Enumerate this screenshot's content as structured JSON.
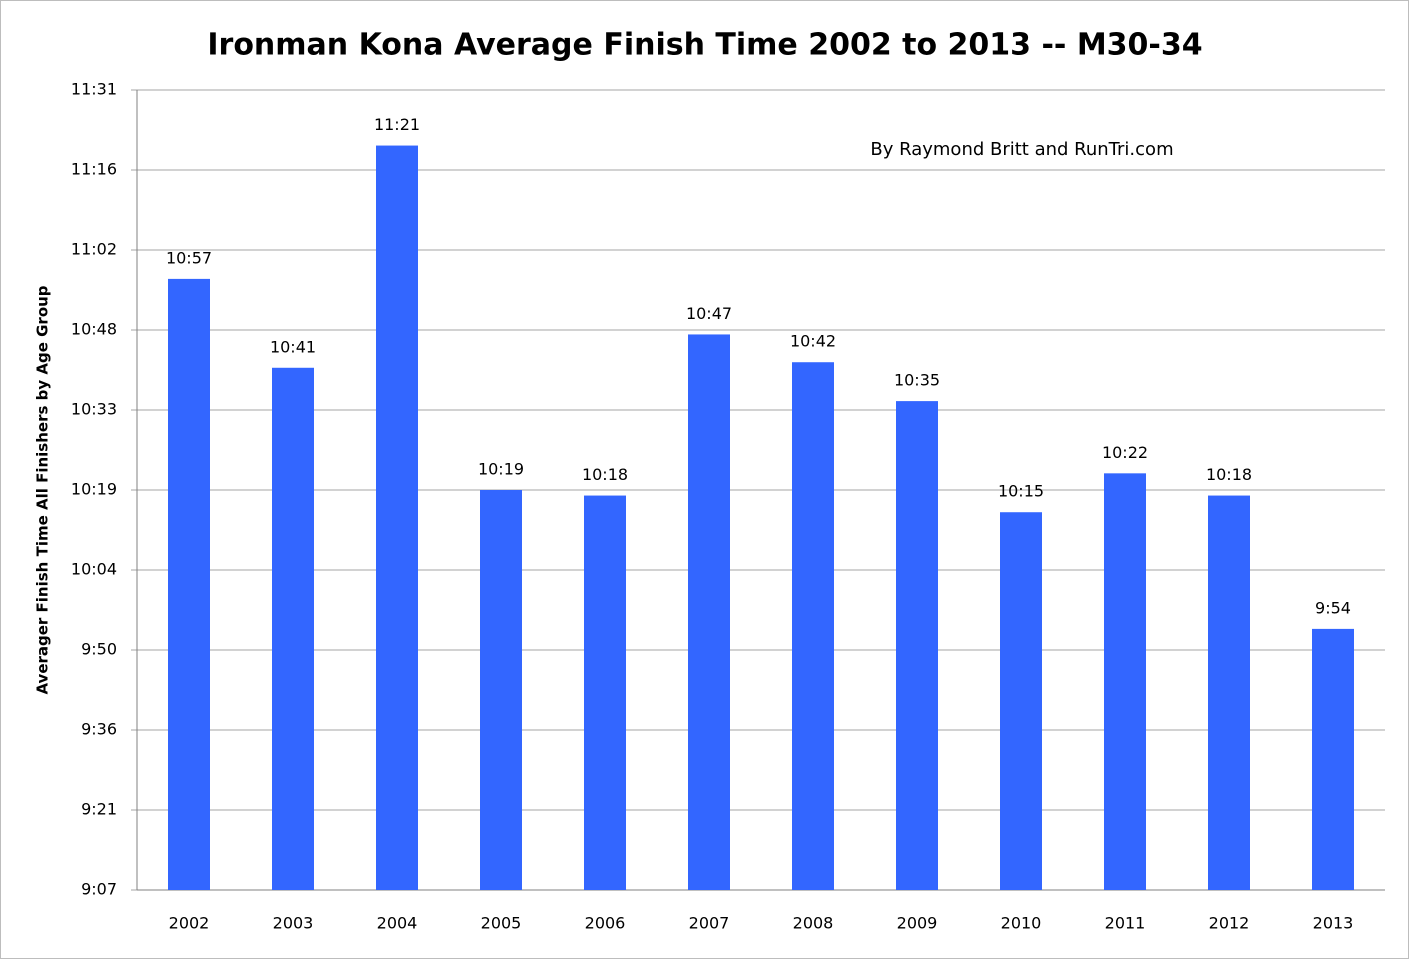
{
  "chart_data": {
    "type": "bar",
    "title": "Ironman Kona Average Finish Time 2002 to 2013 -- M30-34",
    "annotation": "By Raymond Britt and RunTri.com",
    "y_label": "Averager Finish Time All Finishers by Age Group",
    "categories": [
      "2002",
      "2003",
      "2004",
      "2005",
      "2006",
      "2007",
      "2008",
      "2009",
      "2010",
      "2011",
      "2012",
      "2013"
    ],
    "values": [
      657,
      641,
      681,
      619,
      618,
      647,
      642,
      635,
      615,
      622,
      618,
      594
    ],
    "value_labels": [
      "10:57",
      "10:41",
      "11:21",
      "10:19",
      "10:18",
      "10:47",
      "10:42",
      "10:35",
      "10:15",
      "10:22",
      "10:18",
      "9:54"
    ],
    "color": "#3366ff",
    "ylim": [
      547,
      691
    ],
    "yticks": [
      {
        "value": 547,
        "label": "9:07"
      },
      {
        "value": 561.4,
        "label": "9:21"
      },
      {
        "value": 575.8,
        "label": "9:36"
      },
      {
        "value": 590.2,
        "label": "9:50"
      },
      {
        "value": 604.6,
        "label": "10:04"
      },
      {
        "value": 619,
        "label": "10:19"
      },
      {
        "value": 633.4,
        "label": "10:33"
      },
      {
        "value": 647.8,
        "label": "10:48"
      },
      {
        "value": 662.2,
        "label": "11:02"
      },
      {
        "value": 676.6,
        "label": "11:16"
      },
      {
        "value": 691,
        "label": "11:31"
      }
    ],
    "grid": true
  }
}
